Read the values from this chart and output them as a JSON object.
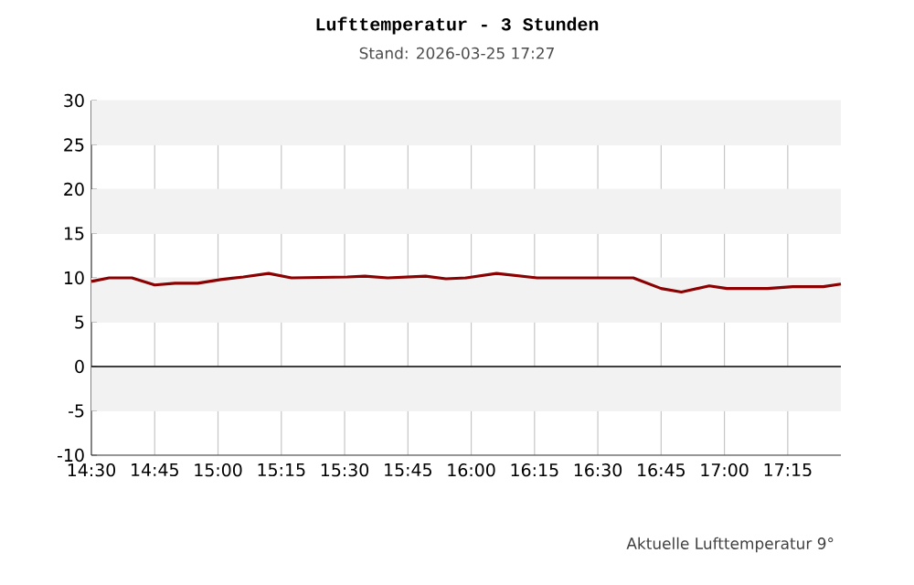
{
  "chart_data": {
    "type": "line",
    "title": "Lufttemperatur - 3 Stunden",
    "subtitle": "Stand: 2026-03-25 17:27",
    "x": [
      14.5,
      14.57,
      14.66,
      14.75,
      14.83,
      14.92,
      15.01,
      15.1,
      15.2,
      15.29,
      15.51,
      15.58,
      15.67,
      15.82,
      15.9,
      15.98,
      16.1,
      16.26,
      16.44,
      16.64,
      16.75,
      16.83,
      16.94,
      17.01,
      17.17,
      17.27,
      17.39,
      17.46
    ],
    "series": [
      {
        "color": "#8b0000",
        "values": [
          9.6,
          10.0,
          10.0,
          9.2,
          9.4,
          9.4,
          9.8,
          10.1,
          10.5,
          10.0,
          10.1,
          10.2,
          10.0,
          10.2,
          9.9,
          10.0,
          10.5,
          10.0,
          10.0,
          10.0,
          8.8,
          8.4,
          9.1,
          8.8,
          8.8,
          9.0,
          9.0,
          9.3
        ]
      }
    ],
    "xlim": [
      14.5,
      17.46
    ],
    "ylim": [
      -10,
      30
    ],
    "xticks": [
      {
        "value": 14.5,
        "label": "14:30"
      },
      {
        "value": 14.75,
        "label": "14:45"
      },
      {
        "value": 15.0,
        "label": "15:00"
      },
      {
        "value": 15.25,
        "label": "15:15"
      },
      {
        "value": 15.5,
        "label": "15:30"
      },
      {
        "value": 15.75,
        "label": "15:45"
      },
      {
        "value": 16.0,
        "label": "16:00"
      },
      {
        "value": 16.25,
        "label": "16:15"
      },
      {
        "value": 16.5,
        "label": "16:30"
      },
      {
        "value": 16.75,
        "label": "16:45"
      },
      {
        "value": 17.0,
        "label": "17:00"
      },
      {
        "value": 17.25,
        "label": "17:15"
      }
    ],
    "yticks": [
      -10,
      -5,
      0,
      5,
      10,
      15,
      20,
      25,
      30
    ],
    "grid": true,
    "ref_lines": [
      {
        "axis": "y",
        "value": 0,
        "color": "#000000"
      }
    ],
    "annotations": [
      "Aktuelle Lufttemperatur 9°"
    ]
  }
}
